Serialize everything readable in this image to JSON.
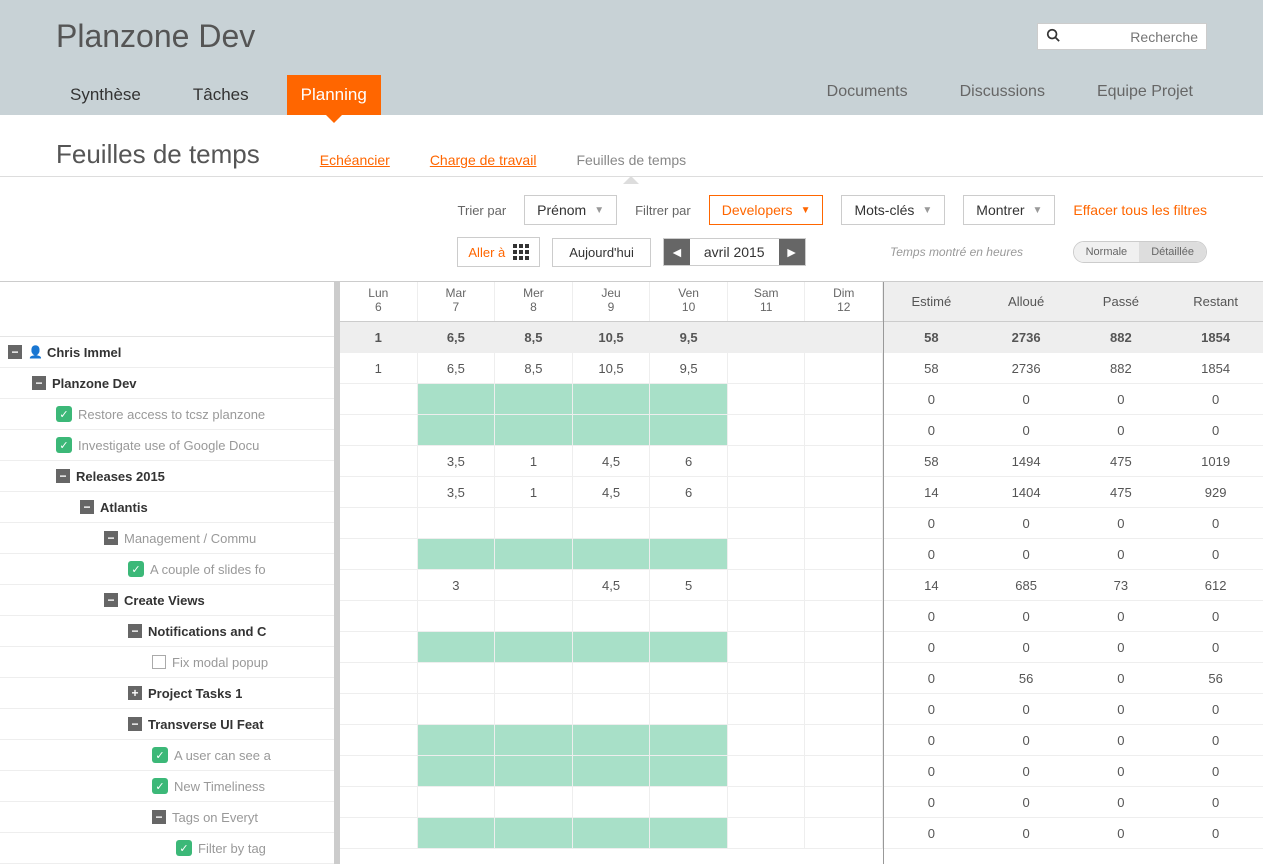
{
  "header": {
    "app_title": "Planzone Dev",
    "search_placeholder": "Recherche",
    "nav_left": [
      "Synthèse",
      "Tâches",
      "Planning"
    ],
    "nav_left_active": 2,
    "nav_right": [
      "Documents",
      "Discussions",
      "Equipe Projet"
    ]
  },
  "page": {
    "title": "Feuilles de temps",
    "subtabs": [
      {
        "label": "Echéancier",
        "kind": "link"
      },
      {
        "label": "Charge de travail",
        "kind": "link"
      },
      {
        "label": "Feuilles de temps",
        "kind": "current"
      }
    ]
  },
  "filters": {
    "sort_label": "Trier par",
    "sort_value": "Prénom",
    "filter_label": "Filtrer par",
    "filter_value": "Developers",
    "keywords_label": "Mots-clés",
    "show_label": "Montrer",
    "clear_label": "Effacer tous les filtres",
    "goto_label": "Aller à",
    "today_label": "Aujourd'hui",
    "month_label": "avril 2015",
    "hint": "Temps montré en heures",
    "view_normal": "Normale",
    "view_detailed": "Détaillée"
  },
  "days": [
    {
      "name": "Lun",
      "num": "6"
    },
    {
      "name": "Mar",
      "num": "7"
    },
    {
      "name": "Mer",
      "num": "8"
    },
    {
      "name": "Jeu",
      "num": "9"
    },
    {
      "name": "Ven",
      "num": "10"
    },
    {
      "name": "Sam",
      "num": "11"
    },
    {
      "name": "Dim",
      "num": "12"
    }
  ],
  "summary_headers": [
    "Estimé",
    "Alloué",
    "Passé",
    "Restant"
  ],
  "colors": {
    "accent": "#ff6600",
    "green_cell": "#a8e0c8",
    "check_green": "#3cb878",
    "header_bg": "#c8d2d6"
  },
  "rows": [
    {
      "indent": 0,
      "icon": "minus",
      "type": "user",
      "label": "Chris Immel",
      "bold": true,
      "cells": [
        "1",
        "6,5",
        "8,5",
        "10,5",
        "9,5",
        "",
        ""
      ],
      "green": [],
      "sum": [
        "58",
        "2736",
        "882",
        "1854"
      ],
      "boldrow": true
    },
    {
      "indent": 1,
      "icon": "minus",
      "type": "folder",
      "label": "Planzone Dev",
      "bold": true,
      "cells": [
        "1",
        "6,5",
        "8,5",
        "10,5",
        "9,5",
        "",
        ""
      ],
      "green": [],
      "sum": [
        "58",
        "2736",
        "882",
        "1854"
      ]
    },
    {
      "indent": 2,
      "icon": "check",
      "type": "task",
      "label": "Restore access to tcsz planzone",
      "dim": true,
      "cells": [
        "",
        "",
        "",
        "",
        "",
        "",
        ""
      ],
      "green": [
        1,
        2,
        3,
        4
      ],
      "sum": [
        "0",
        "0",
        "0",
        "0"
      ]
    },
    {
      "indent": 2,
      "icon": "check",
      "type": "task",
      "label": "Investigate use of Google Docu",
      "dim": true,
      "cells": [
        "",
        "",
        "",
        "",
        "",
        "",
        ""
      ],
      "green": [
        1,
        2,
        3,
        4
      ],
      "sum": [
        "0",
        "0",
        "0",
        "0"
      ]
    },
    {
      "indent": 2,
      "icon": "minus",
      "type": "folder",
      "label": "Releases 2015",
      "bold": true,
      "cells": [
        "",
        "3,5",
        "1",
        "4,5",
        "6",
        "",
        ""
      ],
      "green": [],
      "sum": [
        "58",
        "1494",
        "475",
        "1019"
      ]
    },
    {
      "indent": 3,
      "icon": "minus",
      "type": "folder",
      "label": "Atlantis",
      "bold": true,
      "cells": [
        "",
        "3,5",
        "1",
        "4,5",
        "6",
        "",
        ""
      ],
      "green": [],
      "sum": [
        "14",
        "1404",
        "475",
        "929"
      ]
    },
    {
      "indent": 4,
      "icon": "minus",
      "type": "folder",
      "label": "Management / Commu",
      "dim": true,
      "cells": [
        "",
        "",
        "",
        "",
        "",
        "",
        ""
      ],
      "green": [],
      "sum": [
        "0",
        "0",
        "0",
        "0"
      ]
    },
    {
      "indent": 5,
      "icon": "check",
      "type": "task",
      "label": "A couple of slides fo",
      "dim": true,
      "cells": [
        "",
        "",
        "",
        "",
        "",
        "",
        ""
      ],
      "green": [
        1,
        2,
        3,
        4
      ],
      "sum": [
        "0",
        "0",
        "0",
        "0"
      ]
    },
    {
      "indent": 4,
      "icon": "minus",
      "type": "folder",
      "label": "Create Views",
      "bold": true,
      "cells": [
        "",
        "3",
        "",
        "4,5",
        "5",
        "",
        ""
      ],
      "green": [],
      "sum": [
        "14",
        "685",
        "73",
        "612"
      ]
    },
    {
      "indent": 5,
      "icon": "minus",
      "type": "folder",
      "label": "Notifications and C",
      "bold": true,
      "cells": [
        "",
        "",
        "",
        "",
        "",
        "",
        ""
      ],
      "green": [],
      "sum": [
        "0",
        "0",
        "0",
        "0"
      ]
    },
    {
      "indent": 6,
      "icon": "checkbox",
      "type": "task",
      "label": "Fix modal popup",
      "dim": true,
      "cells": [
        "",
        "",
        "",
        "",
        "",
        "",
        ""
      ],
      "green": [
        1,
        2,
        3,
        4
      ],
      "sum": [
        "0",
        "0",
        "0",
        "0"
      ]
    },
    {
      "indent": 5,
      "icon": "plus",
      "type": "folder",
      "label": "Project Tasks 1",
      "bold": true,
      "cells": [
        "",
        "",
        "",
        "",
        "",
        "",
        ""
      ],
      "green": [],
      "sum": [
        "0",
        "56",
        "0",
        "56"
      ]
    },
    {
      "indent": 5,
      "icon": "minus",
      "type": "folder",
      "label": "Transverse UI Feat",
      "bold": true,
      "cells": [
        "",
        "",
        "",
        "",
        "",
        "",
        ""
      ],
      "green": [],
      "sum": [
        "0",
        "0",
        "0",
        "0"
      ]
    },
    {
      "indent": 6,
      "icon": "check",
      "type": "task",
      "label": "A user can see a",
      "dim": true,
      "cells": [
        "",
        "",
        "",
        "",
        "",
        "",
        ""
      ],
      "green": [
        1,
        2,
        3,
        4
      ],
      "sum": [
        "0",
        "0",
        "0",
        "0"
      ]
    },
    {
      "indent": 6,
      "icon": "check",
      "type": "task",
      "label": "New Timeliness",
      "dim": true,
      "cells": [
        "",
        "",
        "",
        "",
        "",
        "",
        ""
      ],
      "green": [
        1,
        2,
        3,
        4
      ],
      "sum": [
        "0",
        "0",
        "0",
        "0"
      ]
    },
    {
      "indent": 6,
      "icon": "minus",
      "type": "folder",
      "label": "Tags on Everyt",
      "dim": true,
      "cells": [
        "",
        "",
        "",
        "",
        "",
        "",
        ""
      ],
      "green": [],
      "sum": [
        "0",
        "0",
        "0",
        "0"
      ]
    },
    {
      "indent": 7,
      "icon": "check",
      "type": "task",
      "label": "Filter by tag",
      "dim": true,
      "cells": [
        "",
        "",
        "",
        "",
        "",
        "",
        ""
      ],
      "green": [
        1,
        2,
        3,
        4
      ],
      "sum": [
        "0",
        "0",
        "0",
        "0"
      ]
    }
  ]
}
